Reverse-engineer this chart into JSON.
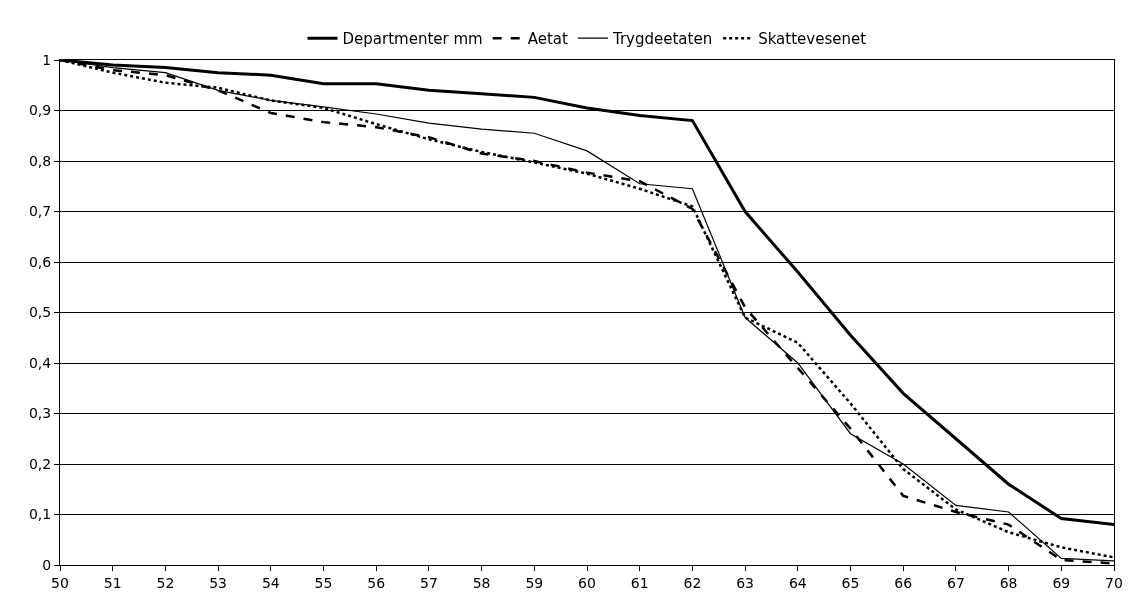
{
  "chart_data": {
    "type": "line",
    "x": [
      50,
      51,
      52,
      53,
      54,
      55,
      56,
      57,
      58,
      59,
      60,
      61,
      62,
      63,
      64,
      65,
      66,
      67,
      68,
      69,
      70
    ],
    "series": [
      {
        "name": "Departmenter mm",
        "color": "#000000",
        "line_style": "solid",
        "values": [
          1,
          0.99,
          0.985,
          0.975,
          0.97,
          0.953,
          0.953,
          0.94,
          0.933,
          0.926,
          0.905,
          0.89,
          0.88,
          0.7,
          0.58,
          0.455,
          0.34,
          0.25,
          0.16,
          0.092,
          0.08
        ]
      },
      {
        "name": "Aetat",
        "color": "#000000",
        "line_style": "dashed",
        "values": [
          1,
          0.98,
          0.97,
          0.94,
          0.895,
          0.877,
          0.867,
          0.847,
          0.815,
          0.8,
          0.777,
          0.76,
          0.705,
          0.51,
          0.39,
          0.27,
          0.137,
          0.105,
          0.08,
          0.01,
          0.003
        ]
      },
      {
        "name": "Trygdeetaten",
        "color": "#000000",
        "line_style": "solid",
        "values": [
          1,
          0.985,
          0.975,
          0.94,
          0.92,
          0.907,
          0.893,
          0.875,
          0.863,
          0.855,
          0.82,
          0.755,
          0.745,
          0.49,
          0.4,
          0.26,
          0.2,
          0.118,
          0.105,
          0.013,
          0.008
        ]
      },
      {
        "name": "Skattevesenet",
        "color": "#000000",
        "line_style": "dotted",
        "values": [
          1,
          0.975,
          0.955,
          0.945,
          0.92,
          0.905,
          0.873,
          0.843,
          0.818,
          0.797,
          0.775,
          0.745,
          0.71,
          0.49,
          0.44,
          0.32,
          0.19,
          0.11,
          0.065,
          0.035,
          0.015
        ]
      }
    ],
    "xlim": [
      50,
      70
    ],
    "xticks": [
      50,
      51,
      52,
      53,
      54,
      55,
      56,
      57,
      58,
      59,
      60,
      61,
      62,
      63,
      64,
      65,
      66,
      67,
      68,
      69,
      70
    ],
    "ylim": [
      0,
      1
    ],
    "yticks": [
      0,
      {
        "value": 0.1,
        "label": "0,1"
      },
      {
        "value": 0.2,
        "label": "0,2"
      },
      {
        "value": 0.3,
        "label": "0,3"
      },
      {
        "value": 0.4,
        "label": "0,4"
      },
      {
        "value": 0.5,
        "label": "0,5"
      },
      {
        "value": 0.6,
        "label": "0,6"
      },
      {
        "value": 0.7,
        "label": "0,7"
      },
      {
        "value": 0.8,
        "label": "0,8"
      },
      {
        "value": 0.9,
        "label": "0,9"
      },
      1
    ],
    "grid": "y",
    "legend": "top",
    "marker": "none"
  }
}
